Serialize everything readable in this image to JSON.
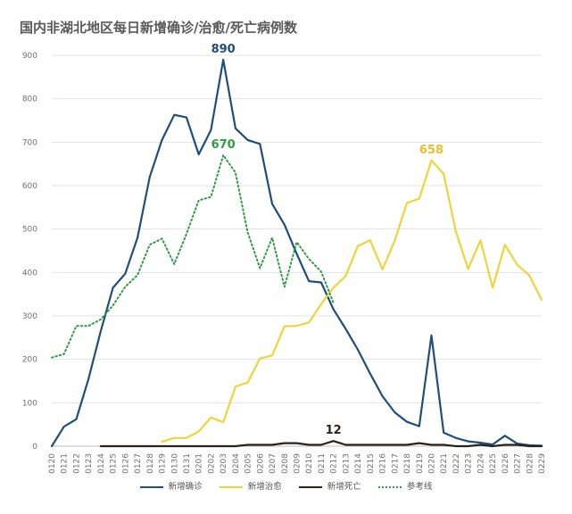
{
  "chart_data": {
    "type": "line",
    "title": "国内非湖北地区每日新增确诊/治愈/死亡病例数",
    "xlabel": "",
    "ylabel": "",
    "ylim": [
      0,
      900
    ],
    "yticks": [
      0,
      100,
      200,
      300,
      400,
      500,
      600,
      700,
      800,
      900
    ],
    "grid": true,
    "legend_position": "bottom",
    "categories": [
      "0120",
      "0121",
      "0122",
      "0123",
      "0124",
      "0125",
      "0126",
      "0127",
      "0128",
      "0129",
      "0130",
      "0131",
      "0201",
      "0202",
      "0203",
      "0204",
      "0205",
      "0206",
      "0207",
      "0208",
      "0209",
      "0210",
      "0211",
      "0212",
      "0213",
      "0214",
      "0215",
      "0216",
      "0217",
      "0218",
      "0219",
      "0220",
      "0221",
      "0222",
      "0223",
      "0224",
      "0225",
      "0226",
      "0227",
      "0228",
      "0229"
    ],
    "series": [
      {
        "name": "新增确诊",
        "color": "#1f4e79",
        "style": "solid",
        "values": [
          0,
          45,
          62,
          155,
          265,
          365,
          397,
          480,
          620,
          705,
          763,
          757,
          672,
          728,
          890,
          732,
          705,
          696,
          558,
          510,
          443,
          380,
          377,
          315,
          270,
          222,
          167,
          115,
          78,
          56,
          46,
          255,
          31,
          19,
          11,
          8,
          4,
          24,
          6,
          2,
          1
        ]
      },
      {
        "name": "新增治愈",
        "color": "#f0d33b",
        "style": "solid",
        "values": [
          null,
          null,
          null,
          null,
          null,
          null,
          null,
          null,
          null,
          10,
          19,
          19,
          34,
          66,
          55,
          137,
          147,
          202,
          209,
          276,
          277,
          285,
          327,
          365,
          392,
          461,
          474,
          407,
          473,
          560,
          570,
          658,
          627,
          494,
          408,
          474,
          365,
          464,
          418,
          393,
          337
        ]
      },
      {
        "name": "新增死亡",
        "color": "#2b211b",
        "style": "solid",
        "values": [
          null,
          null,
          null,
          null,
          0,
          0,
          0,
          0,
          0,
          0,
          0,
          0,
          0,
          0,
          0,
          0,
          3,
          3,
          3,
          7,
          7,
          3,
          3,
          12,
          3,
          3,
          3,
          3,
          3,
          3,
          7,
          3,
          3,
          0,
          0,
          3,
          0,
          3,
          3,
          0,
          0
        ]
      },
      {
        "name": "参考线",
        "color": "#2e9c45",
        "style": "dotted",
        "values": [
          204,
          212,
          277,
          277,
          292,
          324,
          367,
          394,
          464,
          478,
          419,
          489,
          566,
          574,
          670,
          630,
          492,
          410,
          480,
          367,
          470,
          431,
          402,
          330,
          null,
          null,
          null,
          null,
          null,
          null,
          null,
          null,
          null,
          null,
          null,
          null,
          null,
          null,
          null,
          null,
          null
        ]
      }
    ],
    "annotations": [
      {
        "text": "890",
        "series": 0,
        "category": "0203",
        "value": 890,
        "color": "#1f4e79"
      },
      {
        "text": "670",
        "series": 3,
        "category": "0203",
        "value": 670,
        "color": "#2e9c45"
      },
      {
        "text": "658",
        "series": 1,
        "category": "0220",
        "value": 658,
        "color": "#e6c229"
      },
      {
        "text": "12",
        "series": 2,
        "category": "0212",
        "value": 12,
        "color": "#2b211b"
      }
    ]
  }
}
